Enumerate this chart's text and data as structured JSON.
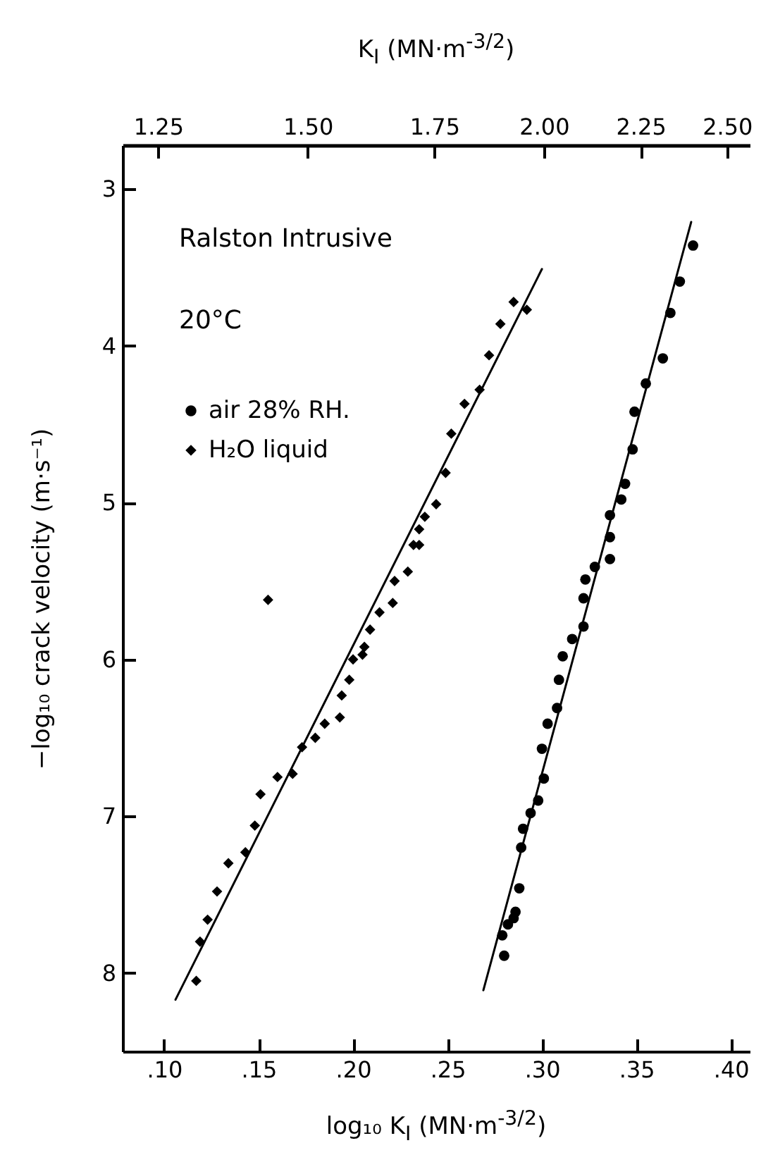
{
  "chart_data": {
    "type": "scatter",
    "xlabel": "log₁₀ K$_{I}$  (MN·m$^{-3/2}$)",
    "x2label": "K$_{I}$  (MN·m$^{-3/2}$)",
    "ylabel": "−log₁₀ crack velocity (m·s⁻¹)",
    "annotations": [
      "Ralston Intrusive",
      "20°C"
    ],
    "xlim": [
      0.078,
      0.41
    ],
    "xticks": [
      {
        "value": 0.1,
        "label": ".10"
      },
      {
        "value": 0.15,
        "label": ".15"
      },
      {
        "value": 0.2,
        "label": ".20"
      },
      {
        "value": 0.25,
        "label": ".25"
      },
      {
        "value": 0.3,
        "label": ".30"
      },
      {
        "value": 0.35,
        "label": ".35"
      },
      {
        "value": 0.4,
        "label": ".40"
      }
    ],
    "x2lim": [
      1.197,
      2.57
    ],
    "x2ticks": [
      {
        "value": 1.25,
        "label": "1.25"
      },
      {
        "value": 1.5,
        "label": "1.50"
      },
      {
        "value": 1.75,
        "label": "1.75"
      },
      {
        "value": 2,
        "label": "2.00"
      },
      {
        "value": 2.25,
        "label": "2.25"
      },
      {
        "value": 2.5,
        "label": "2.50"
      }
    ],
    "log": "x2",
    "ylim": [
      8.5,
      2.72
    ],
    "yticks": [
      3,
      4,
      5,
      6,
      7,
      8
    ],
    "legend": "top left",
    "series": [
      {
        "name": "air 28% RH.",
        "type": "scatter",
        "marker": "circle",
        "color": "#000000",
        "x": [
          0.38,
          0.373,
          0.368,
          0.364,
          0.355,
          0.349,
          0.348,
          0.344,
          0.342,
          0.336,
          0.336,
          0.336,
          0.328,
          0.323,
          0.322,
          0.322,
          0.316,
          0.311,
          0.309,
          0.308,
          0.303,
          0.3,
          0.301,
          0.298,
          0.294,
          0.29,
          0.289,
          0.288,
          0.286,
          0.285,
          0.282,
          0.279,
          0.28
        ],
        "values": [
          3.36,
          3.59,
          3.79,
          4.08,
          4.24,
          4.42,
          4.66,
          4.88,
          4.98,
          5.08,
          5.22,
          5.36,
          5.41,
          5.49,
          5.61,
          5.79,
          5.87,
          5.98,
          6.13,
          6.31,
          6.41,
          6.57,
          6.76,
          6.9,
          6.98,
          7.08,
          7.2,
          7.46,
          7.61,
          7.65,
          7.69,
          7.76,
          7.89
        ]
      },
      {
        "name": "H₂O liquid",
        "type": "scatter",
        "marker": "diamond",
        "color": "#000000",
        "x": [
          0.117,
          0.119,
          0.123,
          0.128,
          0.134,
          0.143,
          0.148,
          0.151,
          0.16,
          0.168,
          0.173,
          0.18,
          0.185,
          0.193,
          0.194,
          0.198,
          0.2,
          0.205,
          0.206,
          0.209,
          0.214,
          0.221,
          0.222,
          0.229,
          0.232,
          0.235,
          0.235,
          0.238,
          0.244,
          0.249,
          0.252,
          0.259,
          0.267,
          0.272,
          0.278,
          0.285,
          0.292,
          0.155
        ],
        "values": [
          8.05,
          7.8,
          7.66,
          7.48,
          7.3,
          7.23,
          7.06,
          6.86,
          6.75,
          6.73,
          6.56,
          6.5,
          6.41,
          6.37,
          6.23,
          6.13,
          6.0,
          5.97,
          5.92,
          5.81,
          5.7,
          5.64,
          5.5,
          5.44,
          5.27,
          5.27,
          5.17,
          5.09,
          5.01,
          4.81,
          4.56,
          4.37,
          4.28,
          4.06,
          3.86,
          3.72,
          3.77,
          5.62
        ]
      },
      {
        "type": "line",
        "color": "#000000",
        "x": [
          0.106,
          0.3
        ],
        "values": [
          8.17,
          3.51
        ]
      },
      {
        "type": "line",
        "color": "#000000",
        "x": [
          0.269,
          0.379
        ],
        "values": [
          8.11,
          3.21
        ]
      }
    ]
  }
}
